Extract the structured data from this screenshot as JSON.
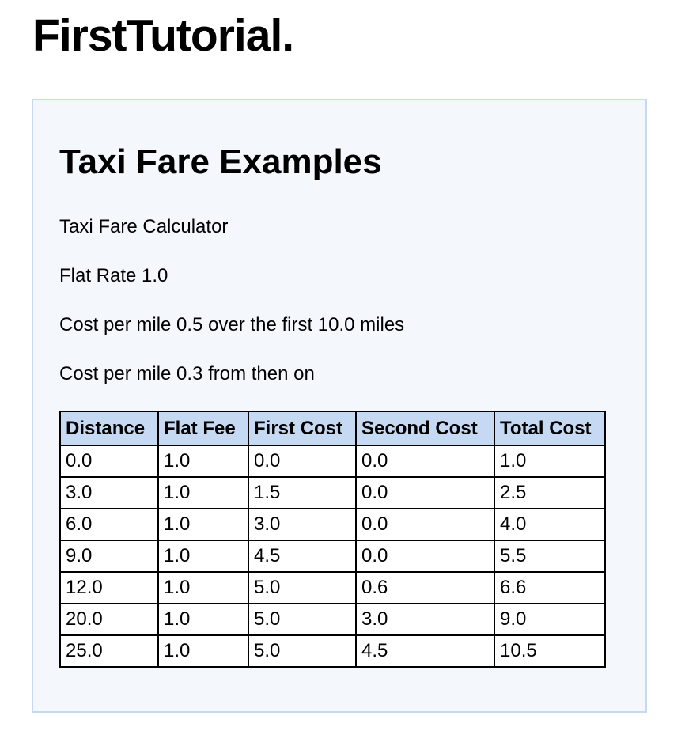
{
  "header": {
    "title": "FirstTutorial."
  },
  "main": {
    "heading": "Taxi Fare Examples",
    "lines": [
      "Taxi Fare Calculator",
      "Flat Rate 1.0",
      "Cost per mile 0.5 over the first 10.0 miles",
      "Cost per mile 0.3 from then on"
    ],
    "table": {
      "columns": [
        "Distance",
        "Flat Fee",
        "First Cost",
        "Second Cost",
        "Total Cost"
      ],
      "rows": [
        [
          "0.0",
          "1.0",
          "0.0",
          "0.0",
          "1.0"
        ],
        [
          "3.0",
          "1.0",
          "1.5",
          "0.0",
          "2.5"
        ],
        [
          "6.0",
          "1.0",
          "3.0",
          "0.0",
          "4.0"
        ],
        [
          "9.0",
          "1.0",
          "4.5",
          "0.0",
          "5.5"
        ],
        [
          "12.0",
          "1.0",
          "5.0",
          "0.6",
          "6.6"
        ],
        [
          "20.0",
          "1.0",
          "5.0",
          "3.0",
          "9.0"
        ],
        [
          "25.0",
          "1.0",
          "5.0",
          "4.5",
          "10.5"
        ]
      ]
    }
  },
  "colors": {
    "panel_background": "#f4f8fd",
    "panel_border": "#c6d9f3",
    "table_header_background": "#c6d9f3"
  }
}
